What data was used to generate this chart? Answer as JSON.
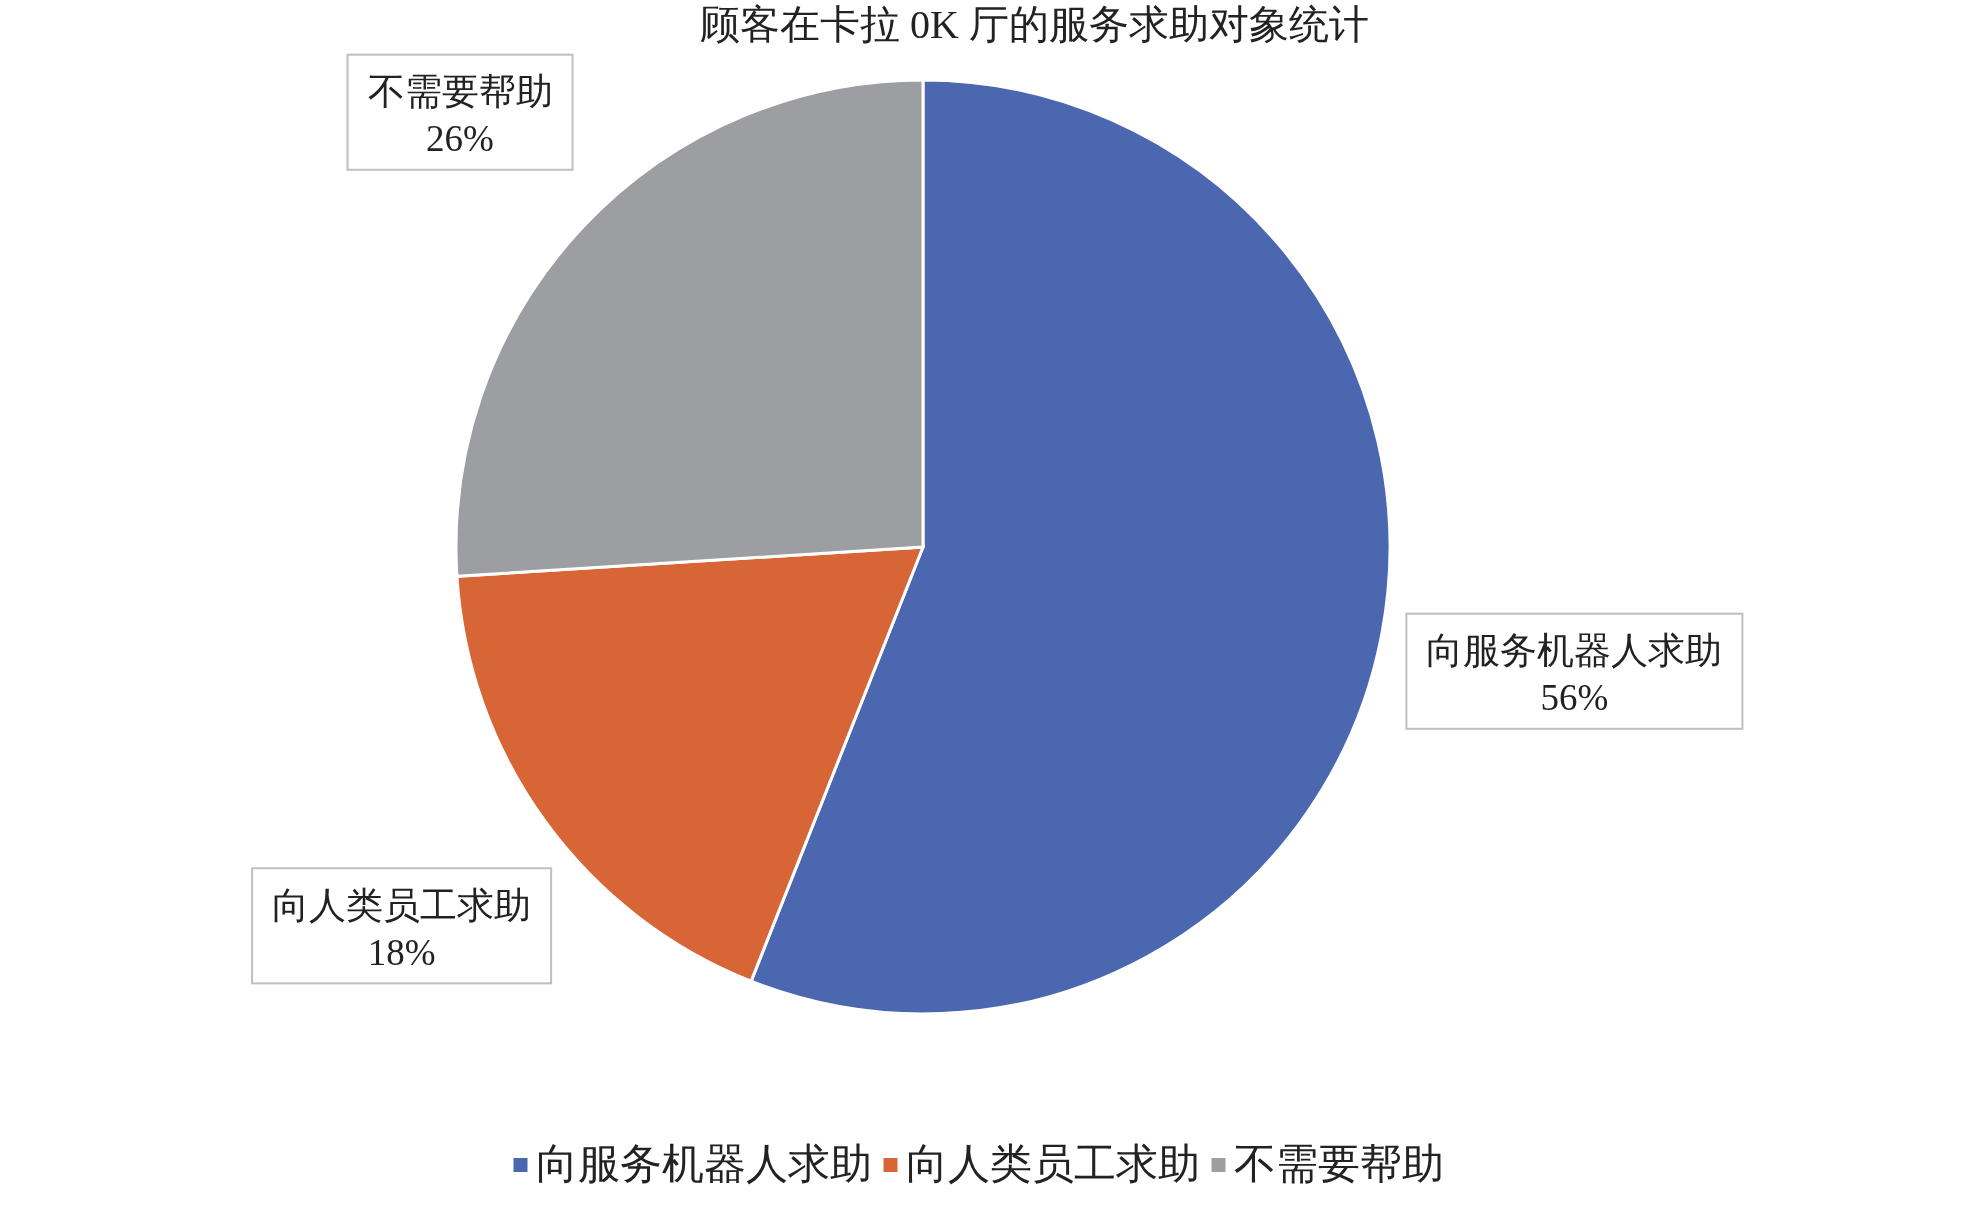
{
  "chart_data": {
    "type": "pie",
    "title": "顾客在卡拉 0K 厅的服务求助对象统计",
    "categories": [
      "向服务机器人求助",
      "向人类员工求助",
      "不需要帮助"
    ],
    "values": [
      56,
      18,
      26
    ],
    "value_labels": [
      "56%",
      "18%",
      "26%"
    ],
    "colors": [
      "#4a67b0",
      "#d86535",
      "#9d9ea2"
    ],
    "legend": "bottom"
  }
}
